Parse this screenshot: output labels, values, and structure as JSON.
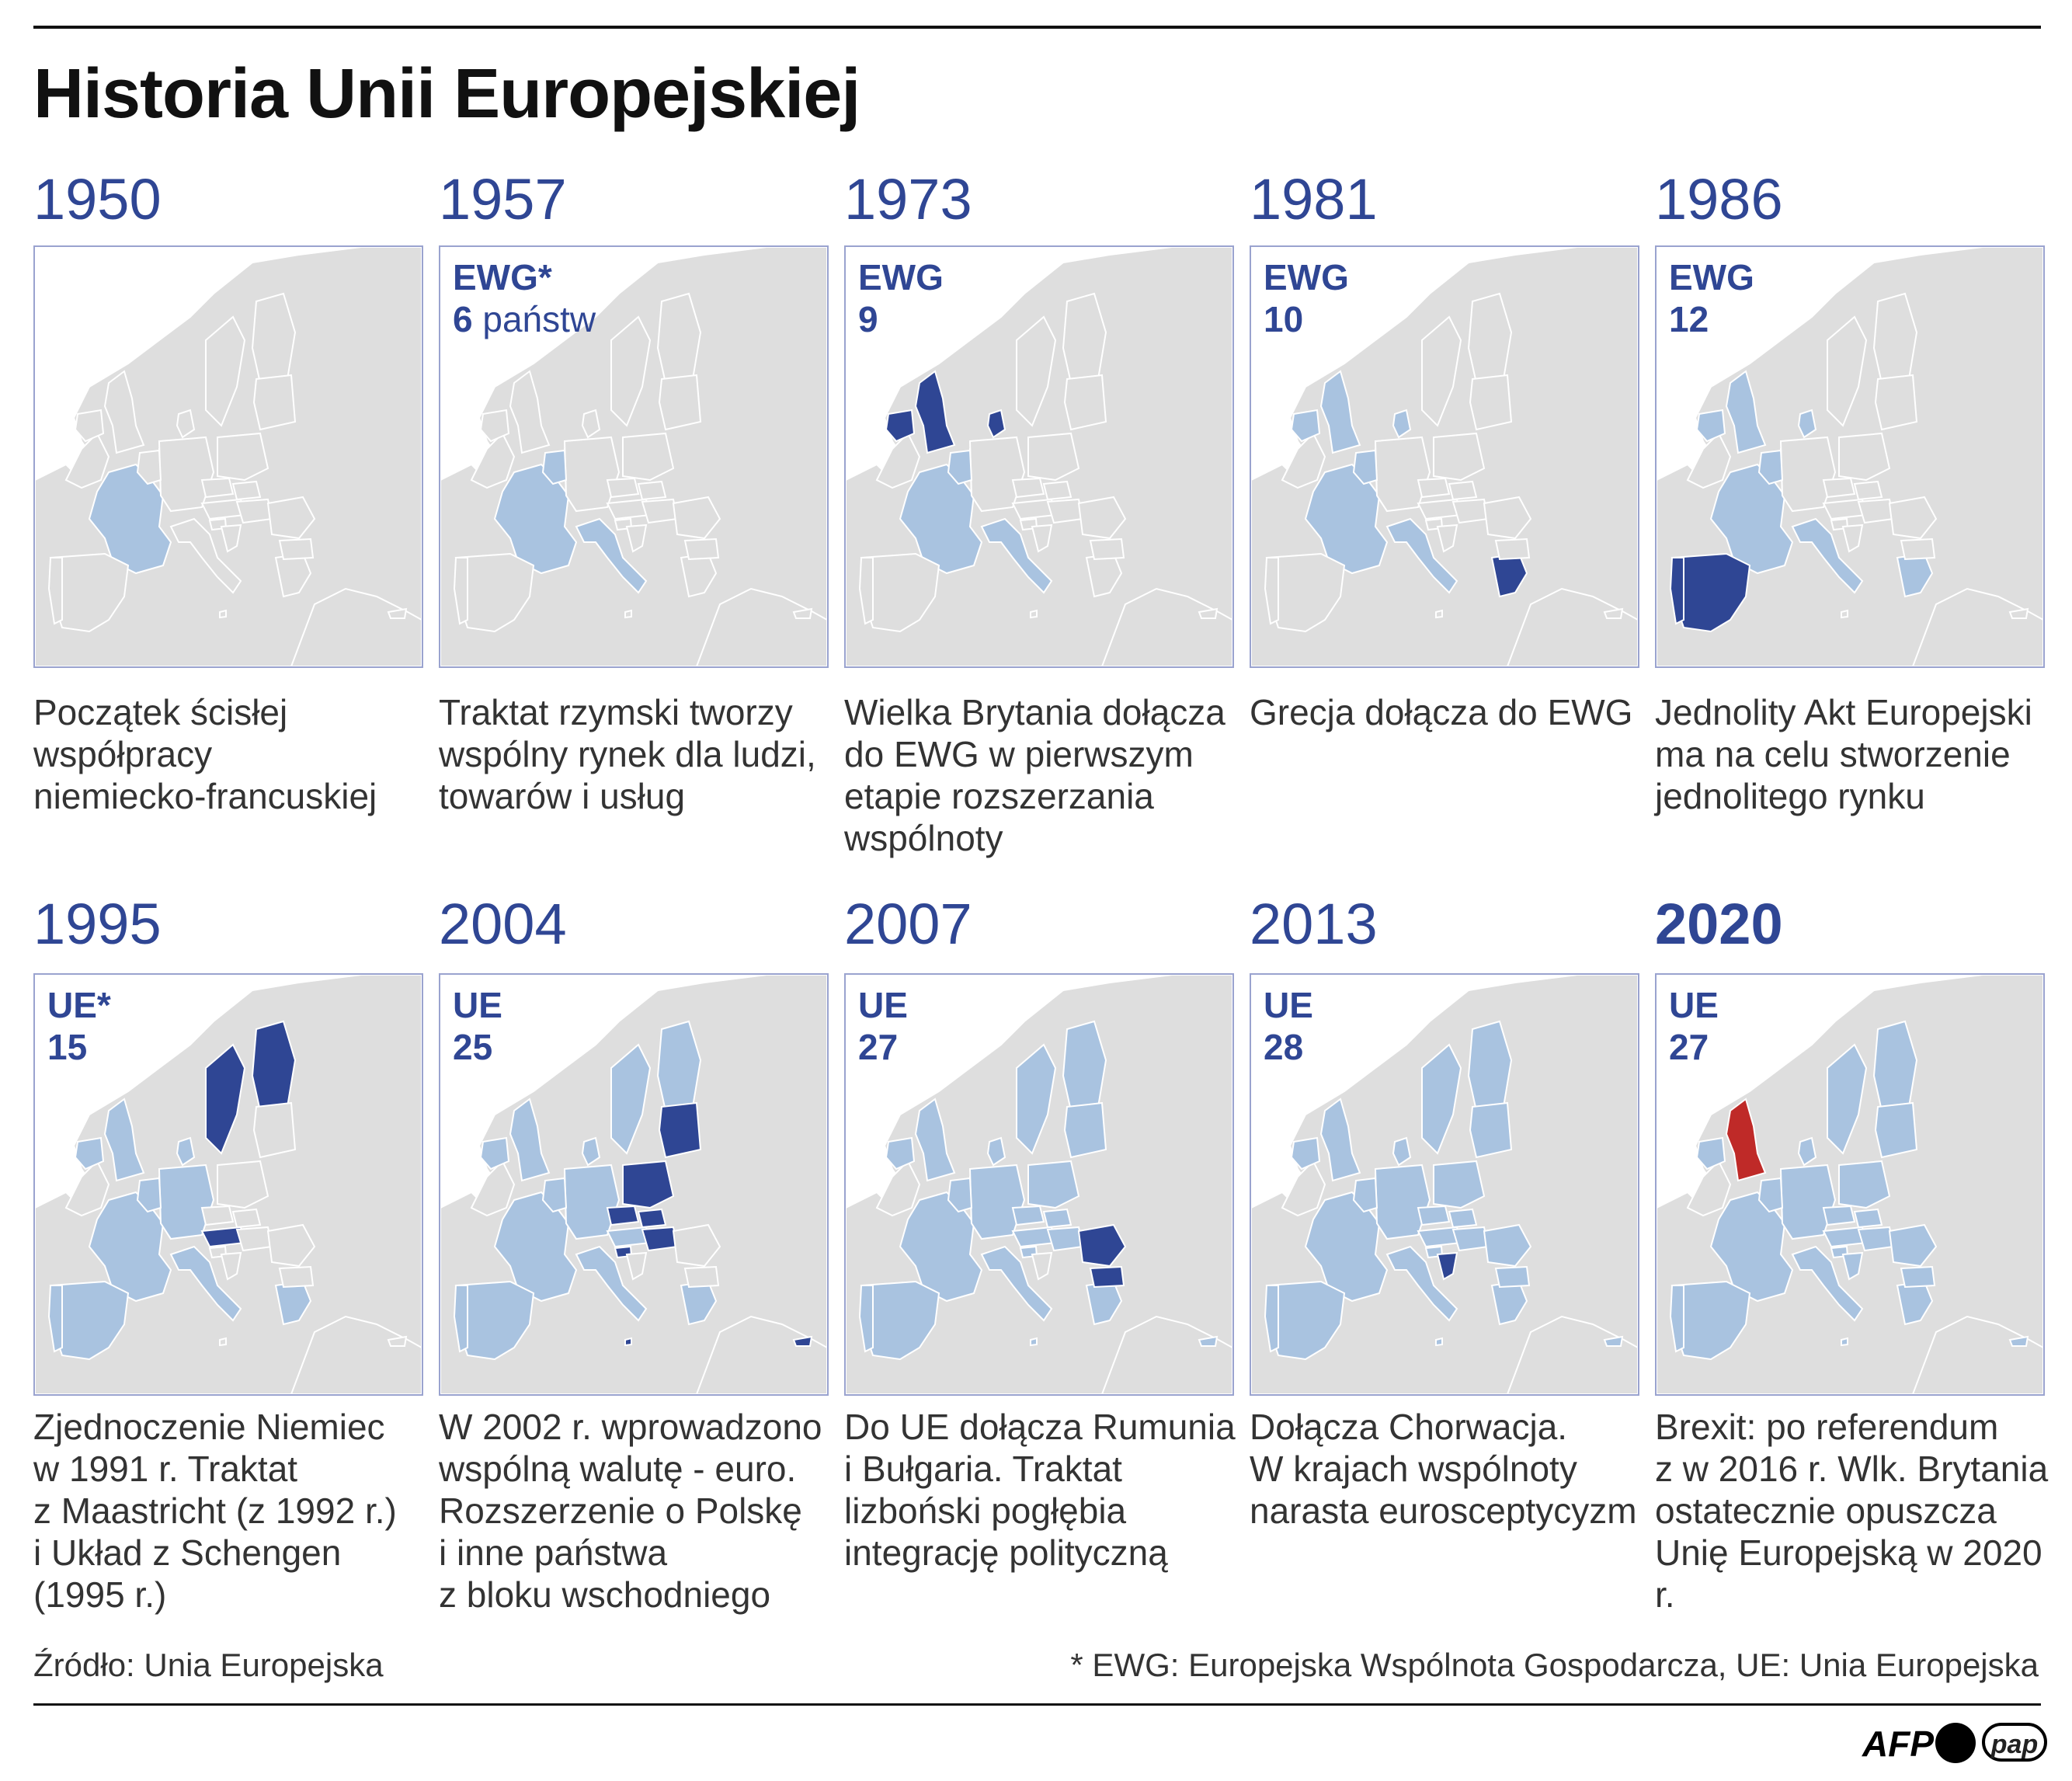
{
  "title": "Historia Unii Europejskiej",
  "colors": {
    "land": "#dedede",
    "member": "#a9c3e0",
    "new_member": "#2f4694",
    "leaving": "#bf2a28",
    "year_text": "#2f4694",
    "frame": "#9aa3cf"
  },
  "panels": [
    {
      "year": "1950",
      "badge_top": "",
      "badge_bottom": "",
      "description": [
        "Początek ścisłej",
        "współpracy",
        "niemiecko-francuskiej"
      ],
      "members": [
        "France",
        "West Germany"
      ],
      "new_members": []
    },
    {
      "year": "1957",
      "badge_top": "EWG*",
      "badge_bottom": "6",
      "badge_suffix": "państw",
      "description": [
        "Traktat rzymski tworzy",
        "wspólny rynek dla ludzi,",
        "towarów i usług"
      ],
      "members": [
        "France",
        "West Germany",
        "Italy",
        "Belgium",
        "Netherlands",
        "Luxembourg"
      ],
      "new_members": []
    },
    {
      "year": "1973",
      "badge_top": "EWG",
      "badge_bottom": "9",
      "description": [
        "Wielka Brytania dołącza",
        "do EWG w pierwszym",
        "etapie rozszerzania",
        "wspólnoty"
      ],
      "members": [
        "France",
        "West Germany",
        "Italy",
        "Belgium",
        "Netherlands",
        "Luxembourg"
      ],
      "new_members": [
        "United Kingdom",
        "Ireland",
        "Denmark"
      ]
    },
    {
      "year": "1981",
      "badge_top": "EWG",
      "badge_bottom": "10",
      "description": [
        "Grecja dołącza do EWG"
      ],
      "members": [
        "France",
        "West Germany",
        "Italy",
        "Benelux",
        "United Kingdom",
        "Ireland",
        "Denmark"
      ],
      "new_members": [
        "Greece"
      ]
    },
    {
      "year": "1986",
      "badge_top": "EWG",
      "badge_bottom": "12",
      "description": [
        "Jednolity Akt Europejski",
        "ma na celu stworzenie",
        "jednolitego rynku"
      ],
      "members": [
        "France",
        "West Germany",
        "Italy",
        "Benelux",
        "United Kingdom",
        "Ireland",
        "Denmark",
        "Greece"
      ],
      "new_members": [
        "Spain",
        "Portugal"
      ]
    },
    {
      "year": "1995",
      "badge_top": "UE*",
      "badge_bottom": "15",
      "description": [
        "Zjednoczenie Niemiec",
        "w 1991 r. Traktat",
        "z Maastricht (z 1992 r.)",
        "i Układ z Schengen",
        "(1995 r.)"
      ],
      "members": [
        "EU12",
        "Germany"
      ],
      "new_members": [
        "Sweden",
        "Finland",
        "Austria"
      ]
    },
    {
      "year": "2004",
      "badge_top": "UE",
      "badge_bottom": "25",
      "description": [
        "W 2002 r. wprowadzono",
        "wspólną walutę - euro.",
        "Rozszerzenie o Polskę",
        "i inne państwa",
        "z bloku wschodniego"
      ],
      "members": [
        "EU15"
      ],
      "new_members": [
        "Poland",
        "Czech Republic",
        "Slovakia",
        "Hungary",
        "Slovenia",
        "Estonia",
        "Latvia",
        "Lithuania",
        "Malta",
        "Cyprus"
      ]
    },
    {
      "year": "2007",
      "badge_top": "UE",
      "badge_bottom": "27",
      "description": [
        "Do UE dołącza Rumunia",
        "i Bułgaria. Traktat",
        "lizboński pogłębia",
        "integrację polityczną"
      ],
      "members": [
        "EU25"
      ],
      "new_members": [
        "Romania",
        "Bulgaria"
      ]
    },
    {
      "year": "2013",
      "badge_top": "UE",
      "badge_bottom": "28",
      "description": [
        "Dołącza Chorwacja.",
        "W krajach wspólnoty",
        "narasta eurosceptycyzm"
      ],
      "members": [
        "EU27"
      ],
      "new_members": [
        "Croatia"
      ]
    },
    {
      "year": "2020",
      "badge_top": "UE",
      "badge_bottom": "27",
      "year_bold": true,
      "description": [
        "Brexit: po referendum",
        "z w 2016 r. Wlk. Brytania",
        "ostatecznie opuszcza",
        "Unię Europejską w 2020 r."
      ],
      "members": [
        "EU27"
      ],
      "new_members": [],
      "leaving": [
        "United Kingdom"
      ]
    }
  ],
  "footer": {
    "source": "Źródło: Unia Europejska",
    "note": "* EWG: Europejska Wspólnota Gospodarcza, UE: Unia Europejska"
  },
  "logos": {
    "afp": "AFP",
    "pap": "pap"
  }
}
